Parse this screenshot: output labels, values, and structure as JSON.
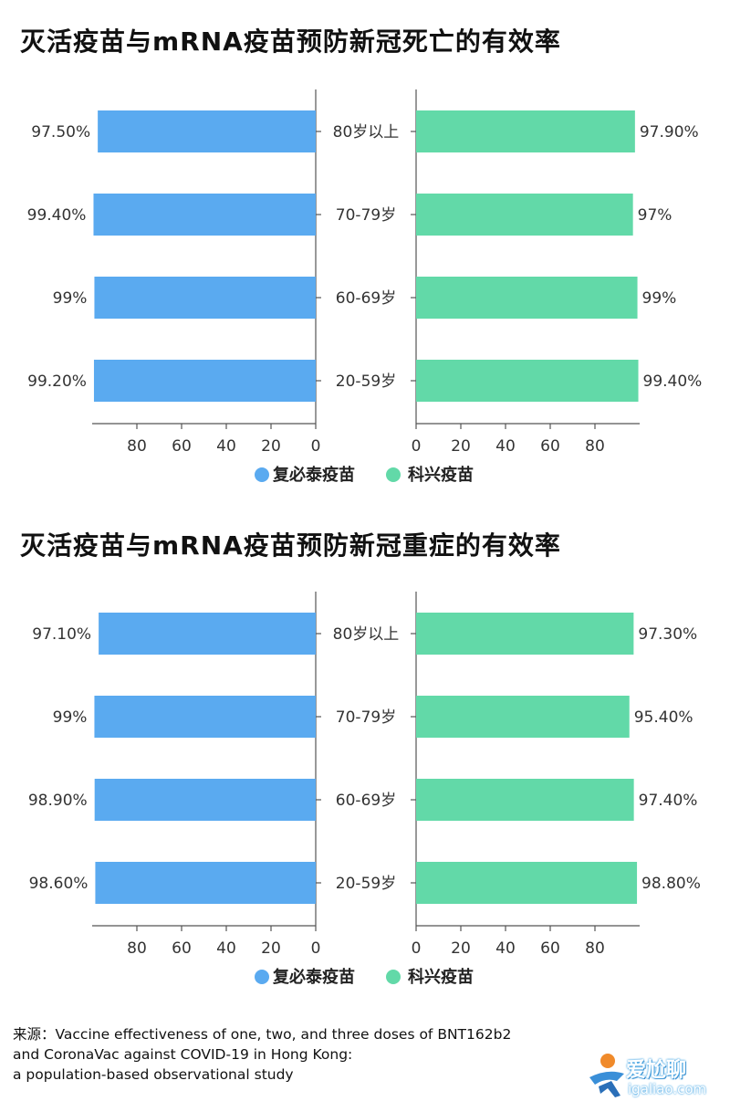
{
  "chart_data": [
    {
      "type": "bar",
      "title": "灭活疫苗与mRNA疫苗预防新冠死亡的有效率",
      "categories": [
        "80岁以上",
        "70-79岁",
        "60-69岁",
        "20-59岁"
      ],
      "series": [
        {
          "name": "复必泰疫苗",
          "color": "#5aaaf0",
          "values": [
            97.5,
            99.4,
            99,
            99.2
          ],
          "labels": [
            "97.50%",
            "99.40%",
            "99%",
            "99.20%"
          ]
        },
        {
          "name": "科兴疫苗",
          "color": "#62d9a8",
          "values": [
            97.9,
            97,
            99,
            99.4
          ],
          "labels": [
            "97.90%",
            "97%",
            "99%",
            "99.40%"
          ]
        }
      ],
      "xlim": [
        0,
        100
      ],
      "xticks": [
        "0",
        "20",
        "40",
        "60",
        "80"
      ],
      "legend_position": "bottom"
    },
    {
      "type": "bar",
      "title": "灭活疫苗与mRNA疫苗预防新冠重症的有效率",
      "categories": [
        "80岁以上",
        "70-79岁",
        "60-69岁",
        "20-59岁"
      ],
      "series": [
        {
          "name": "复必泰疫苗",
          "color": "#5aaaf0",
          "values": [
            97.1,
            99,
            98.9,
            98.6
          ],
          "labels": [
            "97.10%",
            "99%",
            "98.90%",
            "98.60%"
          ]
        },
        {
          "name": "科兴疫苗",
          "color": "#62d9a8",
          "values": [
            97.3,
            95.4,
            97.4,
            98.8
          ],
          "labels": [
            "97.30%",
            "95.40%",
            "97.40%",
            "98.80%"
          ]
        }
      ],
      "xlim": [
        0,
        100
      ],
      "xticks": [
        "0",
        "20",
        "40",
        "60",
        "80"
      ],
      "legend_position": "bottom"
    }
  ],
  "source": {
    "lines": [
      "来源：Vaccine effectiveness of one, two, and three doses of BNT162b2",
      " and CoronaVac against COVID-19 in Hong Kong:",
      "a population-based observational study"
    ]
  },
  "watermark": {
    "name": "爱尬聊",
    "url": "igaliao.com"
  }
}
